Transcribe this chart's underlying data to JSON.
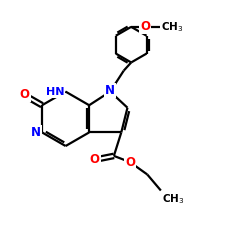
{
  "bg_color": "#ffffff",
  "atom_colors": {
    "N": "#0000ff",
    "O": "#ff0000",
    "C": "#000000"
  },
  "bond_color": "#000000",
  "bond_width": 1.6,
  "figsize": [
    2.5,
    2.5
  ],
  "dpi": 100,
  "xlim": [
    0,
    10
  ],
  "ylim": [
    0,
    10
  ]
}
